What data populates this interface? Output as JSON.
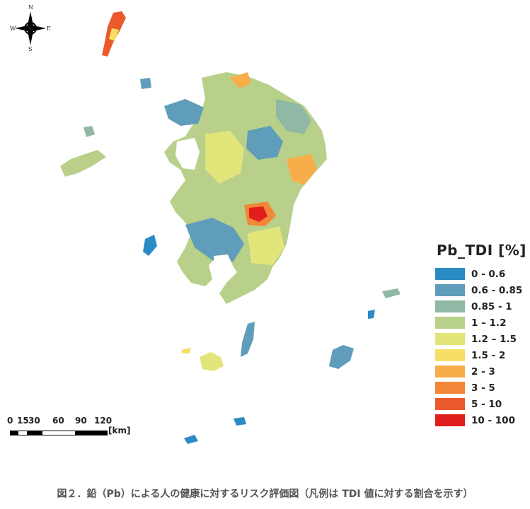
{
  "compass": {
    "n": "N",
    "s": "S",
    "e": "E",
    "w": "W"
  },
  "legend": {
    "title": "Pb_TDI [%]",
    "items": [
      {
        "label": "0 - 0.6",
        "color": "#2b8cc4"
      },
      {
        "label": "0.6 - 0.85",
        "color": "#5f9dba"
      },
      {
        "label": "0.85 - 1",
        "color": "#90b8a4"
      },
      {
        "label": "1 – 1.2",
        "color": "#b8d08a"
      },
      {
        "label": "1.2 – 1.5",
        "color": "#e2e67a"
      },
      {
        "label": "1.5 - 2",
        "color": "#f6df64"
      },
      {
        "label": "2 - 3",
        "color": "#f7ae4a"
      },
      {
        "label": "3 - 5",
        "color": "#f2873a"
      },
      {
        "label": "5 - 10",
        "color": "#ea5a2c"
      },
      {
        "label": "10 - 100",
        "color": "#e01e1e"
      }
    ]
  },
  "scalebar": {
    "ticks": [
      "0",
      "15",
      "30",
      "60",
      "90",
      "120"
    ],
    "unit": "[km]"
  },
  "caption": "図２．鉛（Pb）による人の健康に対するリスク評価図（凡例は TDI 値に対する割合を示す）"
}
